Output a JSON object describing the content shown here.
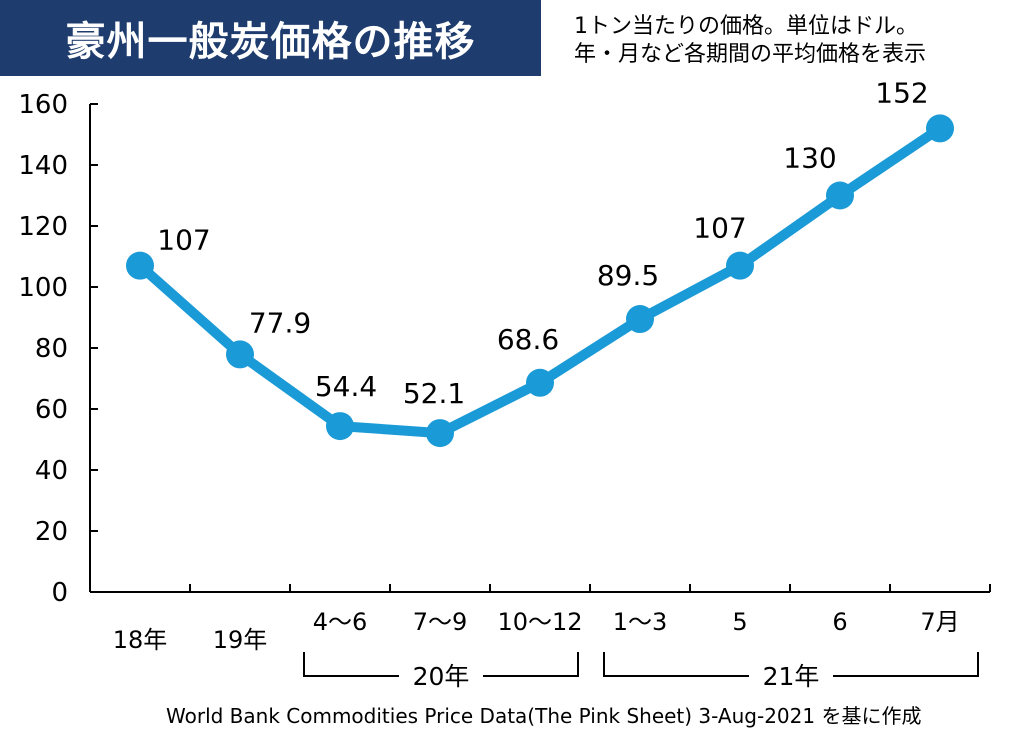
{
  "header": {
    "title": "豪州一般炭価格の推移",
    "note_line1": "1トン当たりの価格。単位はドル。",
    "note_line2": "年・月など各期間の平均価格を表示"
  },
  "source": "World Bank Commodities Price Data(The Pink Sheet) 3-Aug-2021 を基に作成",
  "colors": {
    "title_bg": "#1e3d6e",
    "line": "#1a9ad6",
    "axis": "#000000",
    "text": "#000000"
  },
  "chart_data": {
    "type": "line",
    "title": "豪州一般炭価格の推移",
    "xlabel": "",
    "ylabel": "",
    "ylim": [
      0,
      160
    ],
    "yticks": [
      "0",
      "20",
      "40",
      "60",
      "80",
      "100",
      "120",
      "140",
      "160"
    ],
    "categories": [
      "18年",
      "19年",
      "4～6",
      "7～9",
      "10～12",
      "1～3",
      "5",
      "6",
      "7月"
    ],
    "values": [
      107,
      77.9,
      54.4,
      52.1,
      68.6,
      89.5,
      107,
      130,
      152
    ],
    "data_labels": [
      "107",
      "77.9",
      "54.4",
      "52.1",
      "68.6",
      "89.5",
      "107",
      "130",
      "152"
    ],
    "groups": [
      {
        "label": "20年",
        "from": 2,
        "to": 4
      },
      {
        "label": "21年",
        "from": 5,
        "to": 8
      }
    ],
    "grid": false
  }
}
